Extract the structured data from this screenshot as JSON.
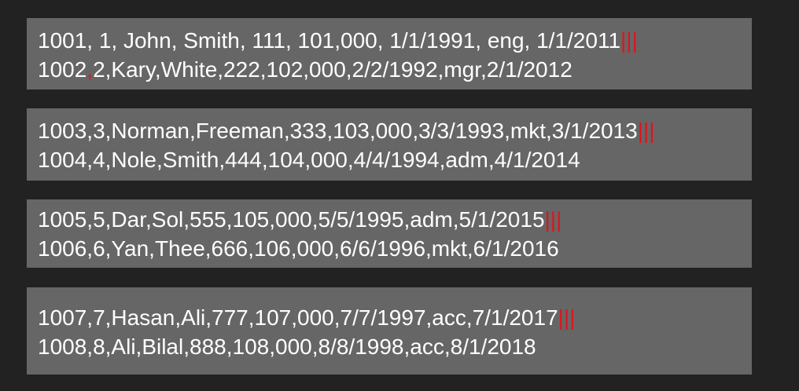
{
  "colors": {
    "background": "#222222",
    "block": "#666666",
    "text": "#ffffff",
    "delimiter": "#e0141c"
  },
  "blocks": [
    {
      "line1": "1001, 1, John, Smith, 111, 101,000, 1/1/1991, eng, 1/1/2011",
      "line1_delimiter": "|||",
      "line2_start": "1002",
      "line2_highlight": ",",
      "line2_rest": "2,Kary,White,222,102,000,2/2/1992,mgr,2/1/2012"
    },
    {
      "line1": "1003,3,Norman,Freeman,333,103,000,3/3/1993,mkt,3/1/2013",
      "line1_delimiter": "|||",
      "line2": "1004,4,Nole,Smith,444,104,000,4/4/1994,adm,4/1/2014"
    },
    {
      "line1": "1005,5,Dar,Sol,555,105,000,5/5/1995,adm,5/1/2015",
      "line1_delimiter": "|||",
      "line2": "1006,6,Yan,Thee,666,106,000,6/6/1996,mkt,6/1/2016"
    },
    {
      "line1": "1007,7,Hasan,Ali,777,107,000,7/7/1997,acc,7/1/2017",
      "line1_delimiter": "|||",
      "line2": "1008,8,Ali,Bilal,888,108,000,8/8/1998,acc,8/1/2018"
    }
  ]
}
